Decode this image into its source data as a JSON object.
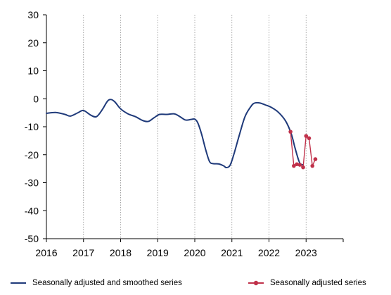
{
  "chart_data": {
    "type": "line",
    "title": "",
    "xlabel": "",
    "ylabel": "",
    "xlim": [
      2016,
      2024
    ],
    "ylim": [
      -50,
      30
    ],
    "x_ticks": [
      2016,
      2017,
      2018,
      2019,
      2020,
      2021,
      2022,
      2023
    ],
    "x_tick_labels": [
      "2016",
      "2017",
      "2018",
      "2019",
      "2020",
      "2021",
      "2022",
      "2023"
    ],
    "y_ticks": [
      -50,
      -40,
      -30,
      -20,
      -10,
      0,
      10,
      20,
      30
    ],
    "y_tick_labels": [
      "-50",
      "-40",
      "-30",
      "-20",
      "-10",
      "0",
      "10",
      "20",
      "30"
    ],
    "vertical_gridlines": "dotted, at each year",
    "legend_position": "bottom",
    "series": [
      {
        "name": "Seasonally adjusted and smoothed series",
        "color": "#1f3a7a",
        "marker": "none",
        "points": [
          [
            2016.0,
            -5.2
          ],
          [
            2016.25,
            -4.9
          ],
          [
            2016.5,
            -5.6
          ],
          [
            2016.65,
            -6.2
          ],
          [
            2016.85,
            -5.0
          ],
          [
            2017.0,
            -4.2
          ],
          [
            2017.2,
            -5.9
          ],
          [
            2017.35,
            -6.4
          ],
          [
            2017.5,
            -4.0
          ],
          [
            2017.65,
            -0.8
          ],
          [
            2017.75,
            -0.3
          ],
          [
            2017.85,
            -1.2
          ],
          [
            2018.0,
            -3.6
          ],
          [
            2018.2,
            -5.4
          ],
          [
            2018.4,
            -6.4
          ],
          [
            2018.6,
            -7.8
          ],
          [
            2018.75,
            -8.1
          ],
          [
            2018.9,
            -6.8
          ],
          [
            2019.05,
            -5.6
          ],
          [
            2019.25,
            -5.6
          ],
          [
            2019.45,
            -5.4
          ],
          [
            2019.6,
            -6.4
          ],
          [
            2019.75,
            -7.6
          ],
          [
            2019.9,
            -7.4
          ],
          [
            2020.0,
            -7.3
          ],
          [
            2020.08,
            -8.6
          ],
          [
            2020.18,
            -12.5
          ],
          [
            2020.3,
            -18.5
          ],
          [
            2020.4,
            -22.5
          ],
          [
            2020.5,
            -23.2
          ],
          [
            2020.65,
            -23.3
          ],
          [
            2020.78,
            -24.0
          ],
          [
            2020.85,
            -24.6
          ],
          [
            2020.95,
            -23.8
          ],
          [
            2021.05,
            -20.0
          ],
          [
            2021.2,
            -13.0
          ],
          [
            2021.35,
            -6.5
          ],
          [
            2021.5,
            -3.0
          ],
          [
            2021.6,
            -1.6
          ],
          [
            2021.75,
            -1.5
          ],
          [
            2021.9,
            -2.2
          ],
          [
            2022.05,
            -3.0
          ],
          [
            2022.25,
            -4.8
          ],
          [
            2022.45,
            -8.0
          ],
          [
            2022.6,
            -12.5
          ],
          [
            2022.7,
            -17.5
          ],
          [
            2022.8,
            -22.0
          ],
          [
            2022.85,
            -23.3
          ],
          [
            2022.92,
            -23.6
          ]
        ]
      },
      {
        "name": "Seasonally adjusted series",
        "color": "#c0314a",
        "marker": "circle",
        "points": [
          [
            2022.58,
            -11.8
          ],
          [
            2022.67,
            -24.0
          ],
          [
            2022.75,
            -23.4
          ],
          [
            2022.83,
            -23.6
          ],
          [
            2022.92,
            -24.5
          ],
          [
            2023.0,
            -13.3
          ],
          [
            2023.08,
            -14.1
          ],
          [
            2023.17,
            -24.0
          ],
          [
            2023.25,
            -21.6
          ]
        ]
      }
    ]
  }
}
